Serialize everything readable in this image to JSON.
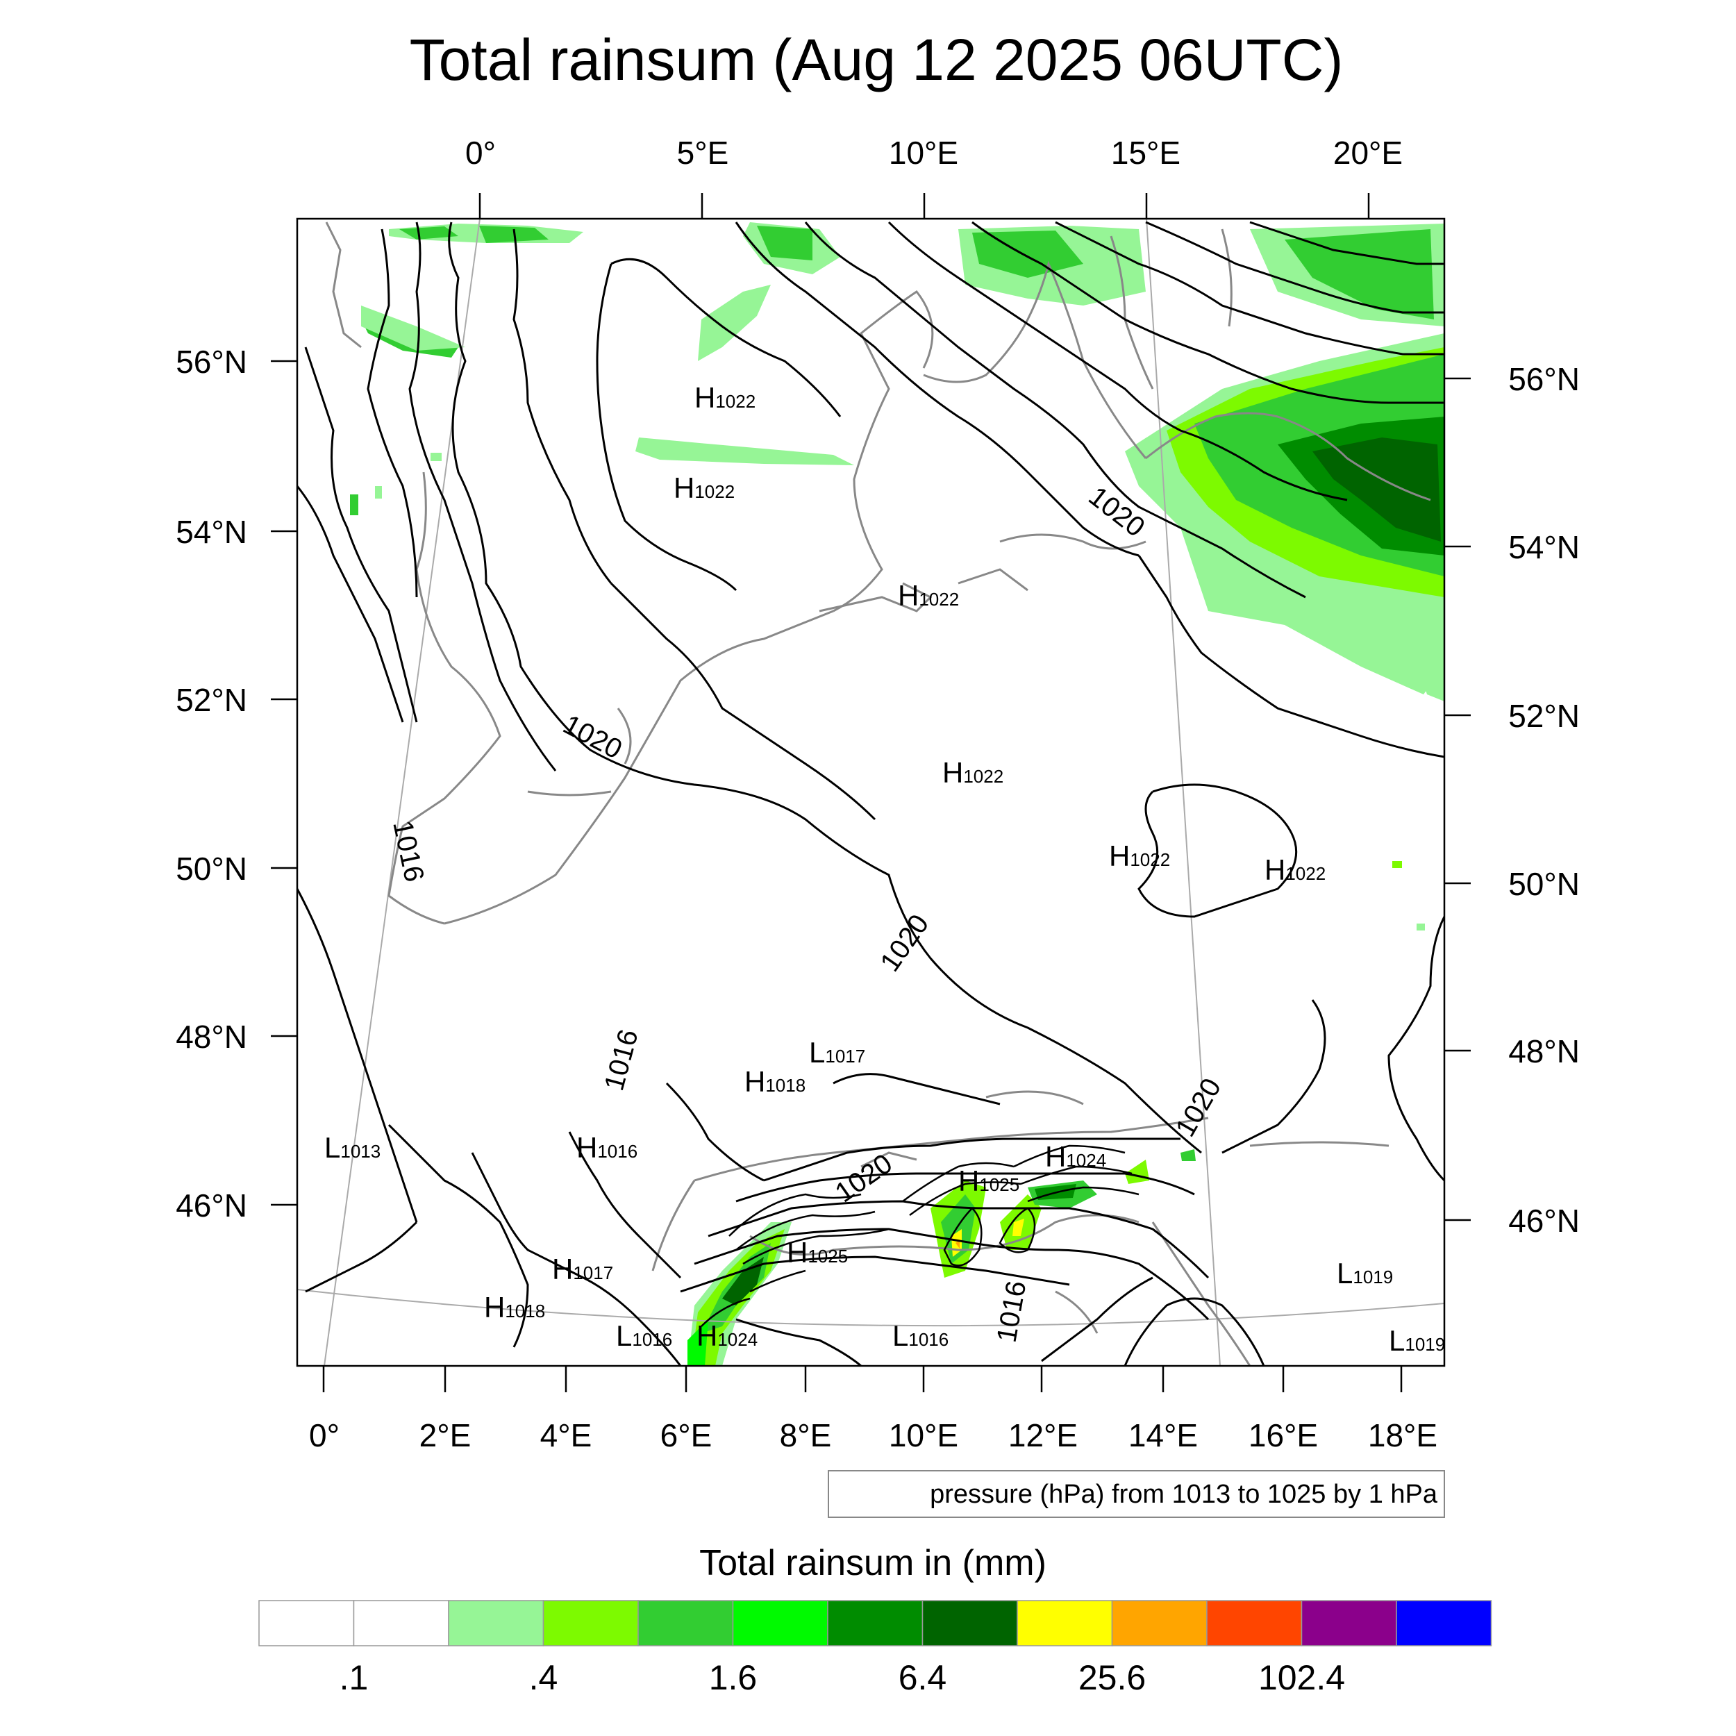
{
  "title": "Total rainsum (Aug 12 2025 06UTC)",
  "lon_top": [
    "0°",
    "5°E",
    "10°E",
    "15°E",
    "20°E"
  ],
  "lon_bottom": [
    "0°",
    "2°E",
    "4°E",
    "6°E",
    "8°E",
    "10°E",
    "12°E",
    "14°E",
    "16°E",
    "18°E"
  ],
  "lat_left": [
    "56°N",
    "54°N",
    "52°N",
    "50°N",
    "48°N",
    "46°N"
  ],
  "lat_right": [
    "56°N",
    "54°N",
    "52°N",
    "50°N",
    "48°N",
    "46°N"
  ],
  "contour_labels": [
    "1020",
    "1020",
    "1016",
    "1020",
    "1016",
    "1020",
    "1020",
    "1016"
  ],
  "pressure_centers": [
    {
      "type": "H",
      "value": "1022"
    },
    {
      "type": "H",
      "value": "1022"
    },
    {
      "type": "H",
      "value": "1022"
    },
    {
      "type": "H",
      "value": "1022"
    },
    {
      "type": "H",
      "value": "1022"
    },
    {
      "type": "H",
      "value": "1022"
    },
    {
      "type": "L",
      "value": "1017"
    },
    {
      "type": "H",
      "value": "1018"
    },
    {
      "type": "L",
      "value": "1013"
    },
    {
      "type": "H",
      "value": "1016"
    },
    {
      "type": "H",
      "value": "1025"
    },
    {
      "type": "H",
      "value": "1024"
    },
    {
      "type": "H",
      "value": "1025"
    },
    {
      "type": "H",
      "value": "1017"
    },
    {
      "type": "H",
      "value": "1018"
    },
    {
      "type": "L",
      "value": "1016"
    },
    {
      "type": "H",
      "value": "1024"
    },
    {
      "type": "L",
      "value": "1016"
    },
    {
      "type": "L",
      "value": "1019"
    },
    {
      "type": "L",
      "value": "1019"
    }
  ],
  "info_box": "pressure (hPa) from 1013 to 1025 by 1 hPa",
  "colorbar": {
    "title": "Total rainsum in (mm)",
    "colors": [
      "#ffffff",
      "#ffffff",
      "#96f596",
      "#7dfa00",
      "#32cd32",
      "#00fa00",
      "#008c00",
      "#006400",
      "#ffff00",
      "#ffa500",
      "#ff4500",
      "#8b008b",
      "#0000ff"
    ],
    "labels": [
      ".1",
      ".4",
      "1.6",
      "6.4",
      "25.6",
      "102.4"
    ]
  },
  "colors": {
    "rain_light": "#96f596",
    "rain_yellowgreen": "#7dfa00",
    "rain_mid": "#32cd32",
    "rain_bright": "#00fa00",
    "rain_dark": "#008c00",
    "rain_darker": "#006400",
    "rain_yellow": "#ffff00",
    "rain_orange": "#ffa500",
    "coast": "#888888",
    "isobar": "#000000",
    "graticule": "#aaaaaa"
  }
}
